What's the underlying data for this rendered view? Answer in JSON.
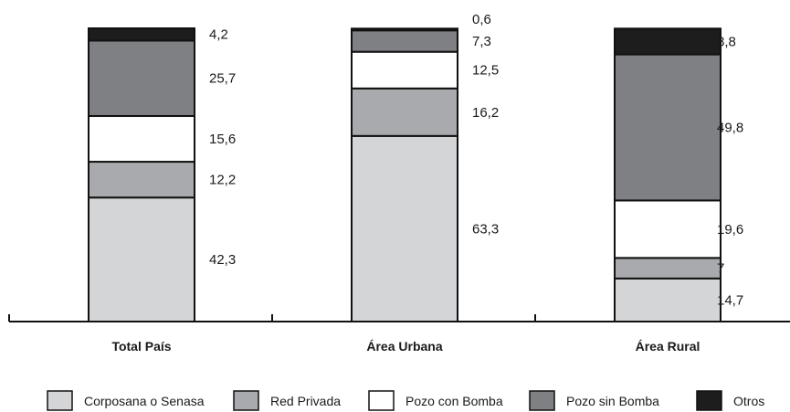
{
  "chart_data": {
    "type": "bar",
    "stacked": true,
    "percent_stacked": true,
    "categories": [
      "Total País",
      "Área Urbana",
      "Área Rural"
    ],
    "series": [
      {
        "name": "Corposana o Senasa",
        "values": [
          42.3,
          63.3,
          14.7
        ],
        "labels": [
          "42,3",
          "63,3",
          "14,7"
        ],
        "color": "#d4d5d7"
      },
      {
        "name": "Red Privada",
        "values": [
          12.2,
          16.2,
          7
        ],
        "labels": [
          "12,2",
          "16,2",
          "7"
        ],
        "color": "#a9aaad"
      },
      {
        "name": "Pozo con Bomba",
        "values": [
          15.6,
          12.5,
          19.6
        ],
        "labels": [
          "15,6",
          "12,5",
          "19,6"
        ],
        "color": "#ffffff"
      },
      {
        "name": "Pozo sin Bomba",
        "values": [
          25.7,
          7.3,
          49.8
        ],
        "labels": [
          "25,7",
          "7,3",
          "49,8"
        ],
        "color": "#7f8083"
      },
      {
        "name": "Otros",
        "values": [
          4.2,
          0.6,
          8.8
        ],
        "labels": [
          "4,2",
          "0,6",
          "8,8"
        ],
        "color": "#1d1d1d"
      }
    ],
    "title": "",
    "xlabel": "",
    "ylabel": "",
    "ylim": [
      0,
      100
    ],
    "grid": false,
    "legend": "bottom"
  }
}
